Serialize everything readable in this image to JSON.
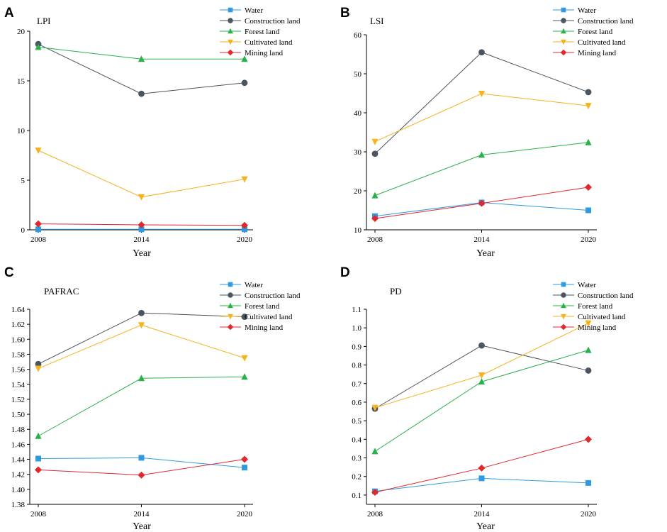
{
  "figure": {
    "legend_labels": [
      "Water",
      "Construction land",
      "Forest land",
      "Cultivated land",
      "Mining land"
    ],
    "series_colors": {
      "Water": "#2f9ae0",
      "Construction land": "#4a5560",
      "Forest land": "#2bb04a",
      "Cultivated land": "#f5b31f",
      "Mining land": "#e0282e"
    },
    "series_markers": {
      "Water": "square",
      "Construction land": "circle",
      "Forest land": "triangle-up",
      "Cultivated land": "triangle-down",
      "Mining land": "diamond"
    }
  },
  "chart_data": [
    {
      "panel": "A",
      "type": "line",
      "title": "LPI",
      "xlabel": "Year",
      "ylabel": "",
      "categories": [
        "2008",
        "2014",
        "2020"
      ],
      "ylim": [
        0,
        20
      ],
      "yticks": [
        0,
        5,
        10,
        15,
        20
      ],
      "ytick_labels": [
        "0",
        "5",
        "10",
        "15",
        "20"
      ],
      "series": [
        {
          "name": "Water",
          "values": [
            0.05,
            0.05,
            0.05
          ]
        },
        {
          "name": "Construction land",
          "values": [
            18.7,
            13.7,
            14.8
          ]
        },
        {
          "name": "Forest land",
          "values": [
            18.4,
            17.2,
            17.2
          ]
        },
        {
          "name": "Cultivated land",
          "values": [
            8.0,
            3.3,
            5.1
          ]
        },
        {
          "name": "Mining land",
          "values": [
            0.6,
            0.5,
            0.45
          ]
        }
      ]
    },
    {
      "panel": "B",
      "type": "line",
      "title": "LSI",
      "xlabel": "Year",
      "ylabel": "",
      "categories": [
        "2008",
        "2014",
        "2020"
      ],
      "ylim": [
        10,
        60
      ],
      "yticks": [
        10,
        20,
        30,
        40,
        50,
        60
      ],
      "ytick_labels": [
        "10",
        "20",
        "30",
        "40",
        "50",
        "60"
      ],
      "series": [
        {
          "name": "Water",
          "values": [
            13.5,
            17.0,
            15.0
          ]
        },
        {
          "name": "Construction land",
          "values": [
            29.5,
            55.5,
            45.3
          ]
        },
        {
          "name": "Forest land",
          "values": [
            18.8,
            29.2,
            32.4
          ]
        },
        {
          "name": "Cultivated land",
          "values": [
            32.6,
            44.9,
            41.8
          ]
        },
        {
          "name": "Mining land",
          "values": [
            12.9,
            16.8,
            20.9
          ]
        }
      ]
    },
    {
      "panel": "C",
      "type": "line",
      "title": "PAFRAC",
      "xlabel": "Year",
      "ylabel": "",
      "categories": [
        "2008",
        "2014",
        "2020"
      ],
      "ylim": [
        1.38,
        1.64
      ],
      "yticks": [
        1.38,
        1.4,
        1.42,
        1.44,
        1.46,
        1.48,
        1.5,
        1.52,
        1.54,
        1.56,
        1.58,
        1.6,
        1.62,
        1.64
      ],
      "ytick_labels": [
        "1.38",
        "1.40",
        "1.42",
        "1.44",
        "1.46",
        "1.48",
        "1.50",
        "1.52",
        "1.54",
        "1.56",
        "1.58",
        "1.60",
        "1.62",
        "1.64"
      ],
      "series": [
        {
          "name": "Water",
          "values": [
            1.441,
            1.442,
            1.429
          ]
        },
        {
          "name": "Construction land",
          "values": [
            1.567,
            1.635,
            1.63
          ]
        },
        {
          "name": "Forest land",
          "values": [
            1.471,
            1.548,
            1.55
          ]
        },
        {
          "name": "Cultivated land",
          "values": [
            1.561,
            1.619,
            1.575
          ]
        },
        {
          "name": "Mining land",
          "values": [
            1.426,
            1.419,
            1.44
          ]
        }
      ]
    },
    {
      "panel": "D",
      "type": "line",
      "title": "PD",
      "xlabel": "Year",
      "ylabel": "",
      "categories": [
        "2008",
        "2014",
        "2020"
      ],
      "ylim": [
        0.05,
        1.1
      ],
      "yticks": [
        0.1,
        0.2,
        0.3,
        0.4,
        0.5,
        0.6,
        0.7,
        0.8,
        0.9,
        1.0,
        1.1
      ],
      "ytick_labels": [
        "0.1",
        "0.2",
        "0.3",
        "0.4",
        "0.5",
        "0.6",
        "0.7",
        "0.8",
        "0.9",
        "1.0",
        "1.1"
      ],
      "series": [
        {
          "name": "Water",
          "values": [
            0.12,
            0.19,
            0.165
          ]
        },
        {
          "name": "Construction land",
          "values": [
            0.565,
            0.905,
            0.77
          ]
        },
        {
          "name": "Forest land",
          "values": [
            0.335,
            0.71,
            0.88
          ]
        },
        {
          "name": "Cultivated land",
          "values": [
            0.57,
            0.745,
            1.025
          ]
        },
        {
          "name": "Mining land",
          "values": [
            0.115,
            0.245,
            0.4
          ]
        }
      ]
    }
  ]
}
